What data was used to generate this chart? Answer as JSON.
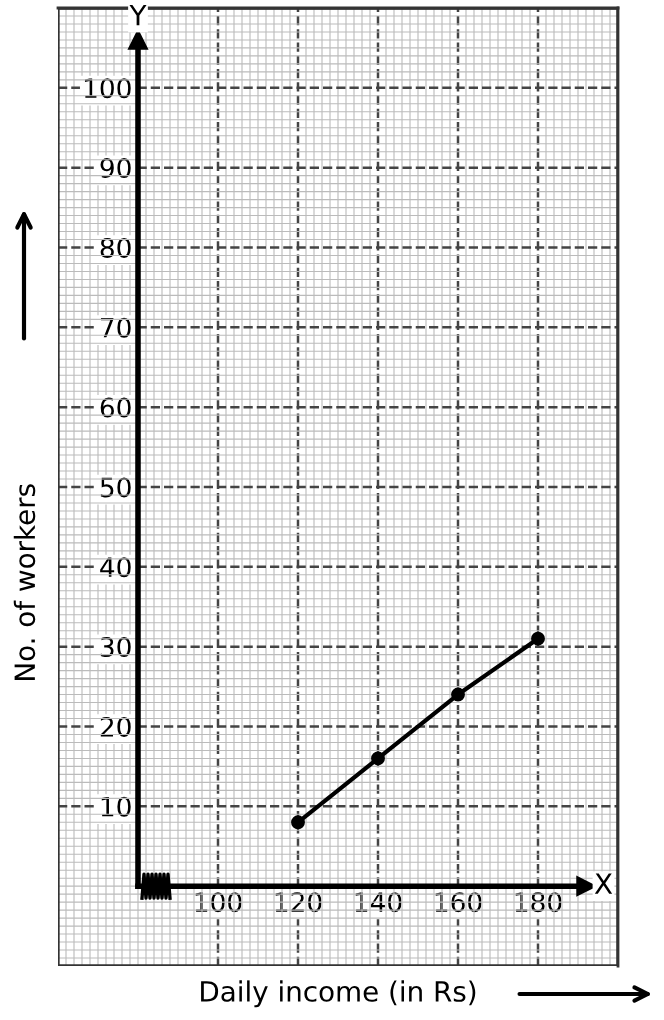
{
  "chart_data": {
    "type": "line",
    "x": [
      120,
      140,
      160,
      180
    ],
    "values": [
      8,
      16,
      24,
      31
    ],
    "color": "#000000",
    "marker": "circle",
    "line_style": "solid",
    "xlabel": "Daily income (in Rs)",
    "ylabel": "No. of workers",
    "annotations": [
      "X",
      "Y"
    ],
    "xlim": [
      60,
      200
    ],
    "ylim": [
      -10,
      110
    ],
    "xticks": [
      100,
      120,
      140,
      160,
      180
    ],
    "yticks": [
      10,
      20,
      30,
      40,
      50,
      60,
      70,
      80,
      90,
      100
    ],
    "grid": true
  }
}
